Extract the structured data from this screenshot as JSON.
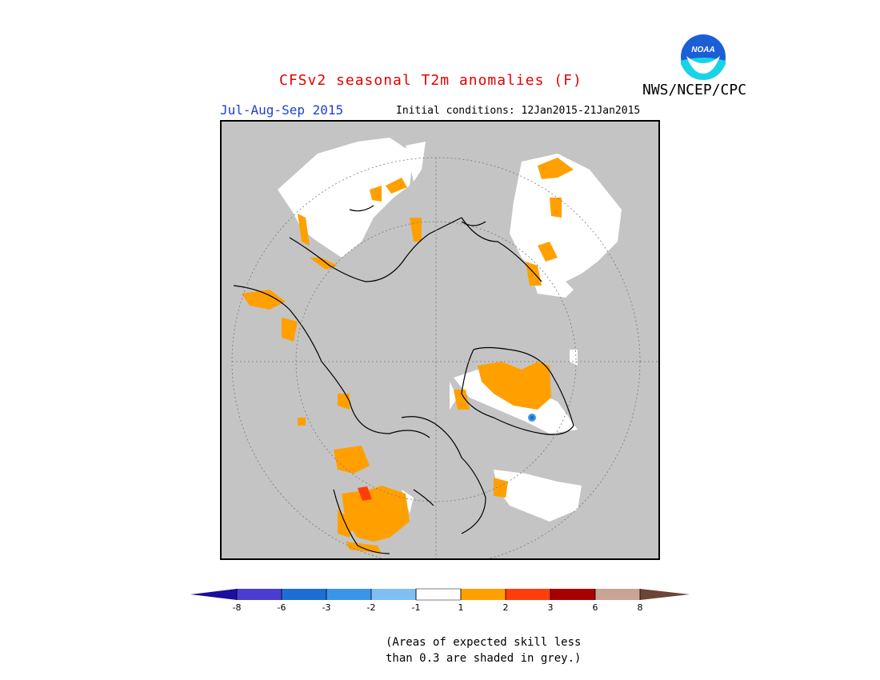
{
  "header": {
    "title": "CFSv2 seasonal T2m anomalies (F)",
    "agency": "NWS/NCEP/CPC",
    "logo_text": "NOAA",
    "season": "Jul-Aug-Sep 2015",
    "initial_conditions": "Initial conditions: 12Jan2015-21Jan2015"
  },
  "legend": {
    "boundaries": [
      "-8",
      "-6",
      "-3",
      "-2",
      "-1",
      "1",
      "2",
      "3",
      "6",
      "8"
    ],
    "colors": [
      "#1a0f9e",
      "#4b3dcf",
      "#1d6ed4",
      "#3a95ea",
      "#80bff2",
      "#ffffff",
      "#ffa000",
      "#ff3d0d",
      "#a80000",
      "#c9a394",
      "#6b4637"
    ]
  },
  "map": {
    "projection": "polar-stereographic-north",
    "skill_mask_color": "#c4c4c4"
  },
  "footnote": {
    "line1": "(Areas of expected skill less",
    "line2": "than 0.3 are shaded in grey.)"
  }
}
